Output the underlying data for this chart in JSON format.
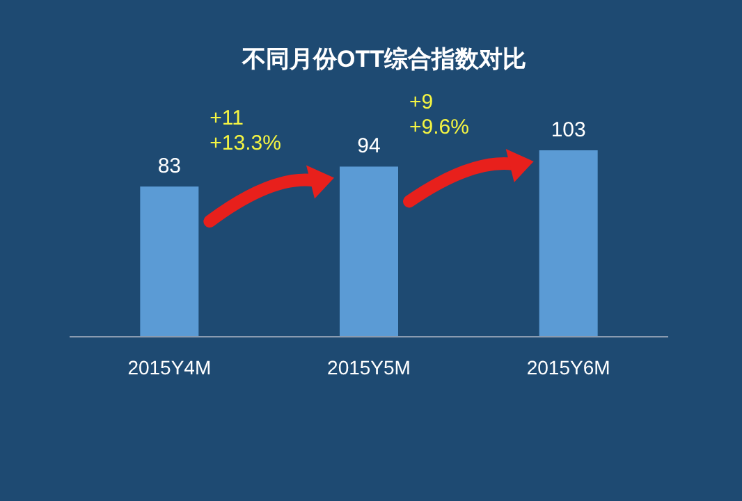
{
  "chart_data": {
    "type": "bar",
    "title": "不同月份OTT综合指数对比",
    "categories": [
      "2015Y4M",
      "2015Y5M",
      "2015Y6M"
    ],
    "values": [
      83,
      94,
      103
    ],
    "color": "#5b9bd5",
    "data_labels": true,
    "annotations": [
      "+11\n+13.3%",
      "+9\n+9.6%"
    ]
  }
}
